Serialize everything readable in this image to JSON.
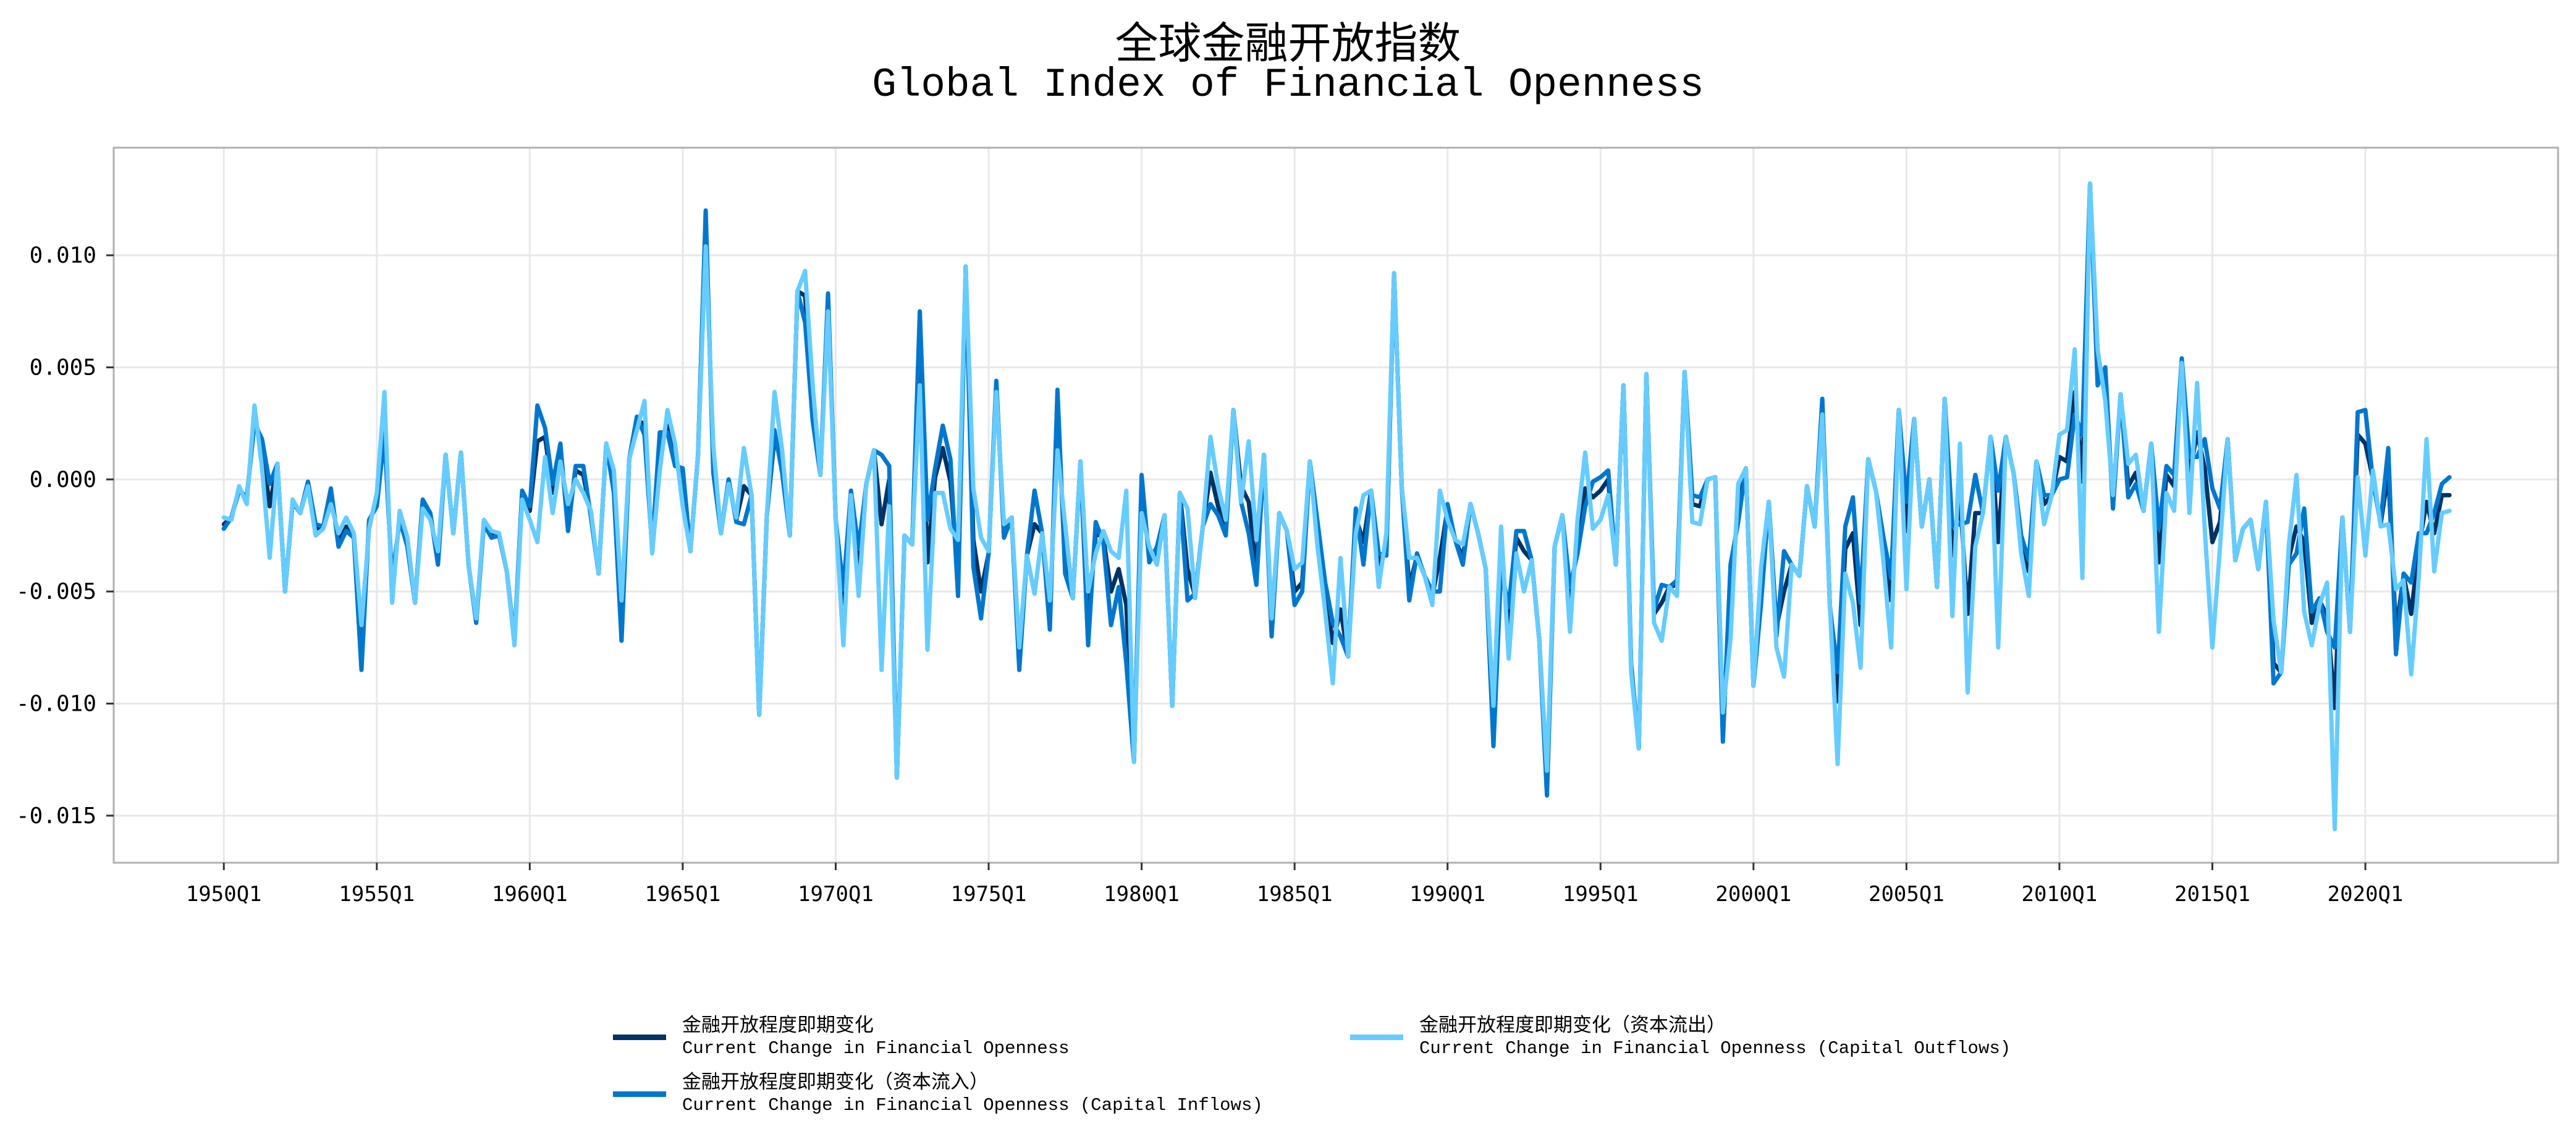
{
  "chart_data": {
    "type": "line",
    "title_cn": "全球金融开放指数",
    "title_en": "Global Index of Financial Openness",
    "xlabel": "",
    "ylabel": "",
    "x_start": "1950Q1",
    "frequency": "quarterly",
    "xlim_years": [
      1946.4,
      2026.3
    ],
    "ylim": [
      -0.0171,
      0.0148
    ],
    "grid": true,
    "legend_placement": "bottom-center",
    "x_ticks": [
      {
        "year": 1950,
        "label": "1950Q1"
      },
      {
        "year": 1955,
        "label": "1955Q1"
      },
      {
        "year": 1960,
        "label": "1960Q1"
      },
      {
        "year": 1965,
        "label": "1965Q1"
      },
      {
        "year": 1970,
        "label": "1970Q1"
      },
      {
        "year": 1975,
        "label": "1975Q1"
      },
      {
        "year": 1980,
        "label": "1980Q1"
      },
      {
        "year": 1985,
        "label": "1985Q1"
      },
      {
        "year": 1990,
        "label": "1990Q1"
      },
      {
        "year": 1995,
        "label": "1995Q1"
      },
      {
        "year": 2000,
        "label": "2000Q1"
      },
      {
        "year": 2005,
        "label": "2005Q1"
      },
      {
        "year": 2010,
        "label": "2010Q1"
      },
      {
        "year": 2015,
        "label": "2015Q1"
      },
      {
        "year": 2020,
        "label": "2020Q1"
      }
    ],
    "y_ticks": [
      {
        "value": 0.01,
        "label": "0.010"
      },
      {
        "value": 0.005,
        "label": "0.005"
      },
      {
        "value": 0.0,
        "label": "0.000"
      },
      {
        "value": -0.005,
        "label": "-0.005"
      },
      {
        "value": -0.01,
        "label": "-0.010"
      },
      {
        "value": -0.015,
        "label": "-0.015"
      }
    ],
    "series": [
      {
        "name_cn": "金融开放程度即期变化",
        "name_en": "Current Change in Financial Openness",
        "color": "#003366",
        "values": [
          -0.002,
          -0.0017,
          -0.0004,
          -0.0009,
          0.0028,
          0.0014,
          -0.0012,
          0.0007,
          -0.005,
          -0.001,
          -0.0015,
          -0.0002,
          -0.0022,
          -0.0021,
          -0.0006,
          -0.0028,
          -0.0021,
          -0.0025,
          -0.0078,
          -0.0019,
          -0.001,
          0.0026,
          -0.0048,
          -0.0017,
          -0.0029,
          -0.0055,
          -0.001,
          -0.0016,
          -0.0036,
          0.0011,
          -0.0024,
          0.0012,
          -0.0038,
          -0.0063,
          -0.0019,
          -0.0025,
          -0.0025,
          -0.0041,
          -0.0073,
          -0.0006,
          -0.0014,
          0.0017,
          0.0019,
          -0.0006,
          0.0013,
          -0.0019,
          0.0004,
          0.0002,
          -0.0016,
          -0.0042,
          0.0016,
          -0.0003,
          -0.0066,
          0.0009,
          0.0026,
          0.0025,
          -0.0031,
          0.0015,
          0.0024,
          0.0009,
          -0.0001,
          -0.0032,
          0.0011,
          0.0115,
          0.0007,
          -0.0024,
          -0.0001,
          -0.0018,
          -0.0003,
          -0.0007,
          -0.0105,
          -0.0016,
          0.0019,
          0.0006,
          -0.0025,
          0.0084,
          0.0082,
          0.0031,
          0.0002,
          0.008,
          -0.0018,
          -0.0057,
          -0.0006,
          -0.0038,
          -0.0002,
          0.0013,
          -0.002,
          0.0,
          -0.0133,
          -0.0025,
          -0.0029,
          0.0064,
          -0.0037,
          0.0001,
          0.0014,
          -0.0001,
          -0.0044,
          0.0095,
          -0.0027,
          -0.005,
          -0.0033,
          0.0042,
          -0.0024,
          -0.0017,
          -0.0082,
          -0.0034,
          -0.002,
          -0.0024,
          -0.0063,
          0.0031,
          -0.0035,
          -0.0053,
          0.0008,
          -0.0066,
          -0.0024,
          -0.0026,
          -0.005,
          -0.004,
          -0.0056,
          -0.0126,
          -0.0004,
          -0.0035,
          -0.0033,
          -0.0016,
          -0.0101,
          -0.0006,
          -0.004,
          -0.0052,
          -0.0021,
          0.0003,
          -0.0012,
          -0.0023,
          0.0031,
          -0.0003,
          -0.001,
          -0.004,
          0.0011,
          -0.0067,
          -0.0015,
          -0.0023,
          -0.005,
          -0.0046,
          0.0008,
          -0.0023,
          -0.005,
          -0.0073,
          -0.0058,
          -0.0079,
          -0.0017,
          -0.0028,
          -0.0005,
          -0.0038,
          -0.0031,
          0.0092,
          -0.0003,
          -0.0048,
          -0.0034,
          -0.0043,
          -0.0052,
          -0.0035,
          -0.0013,
          -0.0027,
          -0.0035,
          -0.0011,
          -0.0024,
          -0.004,
          -0.0113,
          -0.0034,
          -0.0065,
          -0.0026,
          -0.0032,
          -0.0036,
          -0.0072,
          -0.0137,
          -0.003,
          -0.0016,
          -0.0055,
          -0.0028,
          -0.0004,
          -0.0008,
          -0.0005,
          0.0,
          -0.0038,
          0.0042,
          -0.0083,
          -0.012,
          0.0047,
          -0.006,
          -0.0055,
          -0.0048,
          -0.0047,
          0.0048,
          -0.0011,
          -0.0012,
          0.0,
          0.0001,
          -0.0113,
          -0.0049,
          -0.0013,
          0.0005,
          -0.0092,
          -0.005,
          -0.001,
          -0.0066,
          -0.005,
          -0.0038,
          -0.0043,
          -0.0003,
          -0.0021,
          0.0034,
          -0.0057,
          -0.0099,
          -0.0031,
          -0.0024,
          -0.0065,
          0.0009,
          -0.0005,
          -0.003,
          -0.0054,
          0.0031,
          -0.0023,
          0.0027,
          -0.0021,
          0.0,
          -0.0048,
          0.0036,
          -0.0034,
          -0.0008,
          -0.006,
          -0.0015,
          -0.0015,
          0.0019,
          -0.0028,
          0.0019,
          0.0003,
          -0.0028,
          -0.0041,
          0.0008,
          -0.0011,
          -0.0007,
          0.001,
          0.0008,
          0.0039,
          -0.0001,
          0.0132,
          0.0047,
          0.0045,
          -0.0011,
          0.0038,
          -0.0003,
          0.0003,
          -0.0014,
          0.0016,
          -0.0037,
          0.0002,
          -0.0003,
          0.0053,
          0.0002,
          0.0021,
          0.0005,
          -0.0028,
          -0.0019,
          0.0018,
          -0.0036,
          -0.0022,
          -0.0018,
          -0.004,
          -0.001,
          -0.0082,
          -0.0086,
          -0.0035,
          -0.0021,
          -0.0028,
          -0.0064,
          -0.0054,
          -0.0061,
          -0.0102,
          -0.0017,
          -0.0068,
          0.002,
          0.0016,
          0.0,
          -0.002,
          0.0003,
          -0.0068,
          -0.0043,
          -0.006,
          -0.003,
          -0.001,
          -0.0024,
          -0.0007,
          -0.0007
        ]
      },
      {
        "name_cn": "金融开放程度即期变化（资本流入）",
        "name_en": "Current Change in Financial Openness (Capital Inflows)",
        "color": "#0077CC",
        "values": [
          -0.0022,
          -0.0017,
          -0.0005,
          -0.0008,
          0.0025,
          0.0018,
          -0.0002,
          0.0007,
          -0.005,
          -0.001,
          -0.0015,
          -0.0001,
          -0.002,
          -0.0021,
          -0.0004,
          -0.003,
          -0.0023,
          -0.0026,
          -0.0085,
          -0.0018,
          -0.0012,
          0.002,
          -0.0045,
          -0.0018,
          -0.003,
          -0.0055,
          -0.0009,
          -0.0015,
          -0.0038,
          0.0011,
          -0.0024,
          0.0012,
          -0.0038,
          -0.0064,
          -0.002,
          -0.0026,
          -0.0025,
          -0.0041,
          -0.0072,
          -0.0005,
          -0.0012,
          0.0033,
          0.0023,
          -0.0002,
          0.0016,
          -0.0023,
          0.0006,
          0.0006,
          -0.0017,
          -0.0042,
          0.0016,
          -0.0006,
          -0.0072,
          0.0009,
          0.0028,
          0.002,
          -0.003,
          0.0021,
          0.0021,
          0.0006,
          0.0005,
          -0.0032,
          0.0011,
          0.012,
          0.0003,
          -0.0024,
          0.0,
          -0.0019,
          -0.002,
          -0.0007,
          -0.0105,
          -0.0016,
          0.0022,
          0.0003,
          -0.0025,
          0.0084,
          0.007,
          0.0026,
          0.0002,
          0.0083,
          -0.0018,
          -0.0049,
          -0.0005,
          -0.0031,
          -0.0002,
          0.0013,
          0.0011,
          0.0006,
          -0.0133,
          -0.0025,
          -0.0029,
          0.0075,
          -0.0018,
          0.0005,
          0.0024,
          0.0009,
          -0.0052,
          0.0095,
          -0.0039,
          -0.0062,
          -0.0033,
          0.0044,
          -0.0026,
          -0.0017,
          -0.0085,
          -0.0034,
          -0.0005,
          -0.0024,
          -0.0067,
          0.004,
          -0.0042,
          -0.0053,
          0.0008,
          -0.0074,
          -0.0019,
          -0.0028,
          -0.0065,
          -0.0048,
          -0.0082,
          -0.0126,
          0.0002,
          -0.0037,
          -0.003,
          -0.0016,
          -0.0101,
          -0.0006,
          -0.0054,
          -0.0051,
          -0.0021,
          -0.0011,
          -0.0016,
          -0.0025,
          0.0031,
          -0.001,
          -0.0024,
          -0.0047,
          0.0011,
          -0.007,
          -0.0015,
          -0.0023,
          -0.0056,
          -0.005,
          0.0008,
          -0.0019,
          -0.0046,
          -0.0064,
          -0.007,
          -0.0079,
          -0.0013,
          -0.0038,
          -0.0005,
          -0.0033,
          -0.0034,
          0.0092,
          -0.0003,
          -0.0054,
          -0.0033,
          -0.0043,
          -0.005,
          -0.005,
          -0.0011,
          -0.0027,
          -0.0038,
          -0.0011,
          -0.0024,
          -0.004,
          -0.0119,
          -0.004,
          -0.0057,
          -0.0023,
          -0.0023,
          -0.0036,
          -0.0072,
          -0.0141,
          -0.003,
          -0.0016,
          -0.0048,
          -0.0033,
          -0.0012,
          -0.0001,
          0.0001,
          0.0004,
          -0.0038,
          0.0042,
          -0.0082,
          -0.012,
          0.0047,
          -0.0058,
          -0.0047,
          -0.0048,
          -0.0045,
          0.0048,
          -0.0007,
          -0.0008,
          0.0,
          0.0001,
          -0.0117,
          -0.0038,
          -0.0019,
          0.0005,
          -0.0092,
          -0.0055,
          -0.001,
          -0.007,
          -0.0032,
          -0.0038,
          -0.0043,
          -0.0003,
          -0.0021,
          0.0036,
          -0.0057,
          -0.0086,
          -0.0021,
          -0.0008,
          -0.0055,
          0.0009,
          -0.0005,
          -0.0026,
          -0.0044,
          0.0031,
          -0.001,
          0.0027,
          -0.0021,
          0.0,
          -0.0048,
          0.0036,
          -0.0021,
          -0.002,
          -0.0019,
          0.0002,
          -0.0015,
          0.0019,
          -0.0005,
          0.0019,
          0.0003,
          -0.0025,
          -0.0036,
          0.0008,
          -0.0007,
          -0.0007,
          0.0,
          0.0001,
          0.0029,
          0.002,
          0.0132,
          0.0042,
          0.005,
          -0.0013,
          0.0038,
          -0.0008,
          -0.0002,
          -0.0014,
          0.0016,
          -0.0022,
          0.0006,
          0.0002,
          0.0054,
          0.001,
          0.001,
          0.0018,
          -0.0004,
          -0.0013,
          0.0018,
          -0.0036,
          -0.0022,
          -0.0018,
          -0.004,
          -0.001,
          -0.0091,
          -0.0086,
          -0.0038,
          -0.0033,
          -0.0013,
          -0.0059,
          -0.0053,
          -0.0068,
          -0.0075,
          -0.0017,
          -0.0068,
          0.003,
          0.0031,
          -0.0001,
          -0.0019,
          0.0014,
          -0.0078,
          -0.0042,
          -0.0046,
          -0.0024,
          -0.0024,
          -0.0015,
          -0.0002,
          0.0001
        ]
      },
      {
        "name_cn": "金融开放程度即期变化（资本流出）",
        "name_en": "Current Change in Financial Openness (Capital Outflows)",
        "color": "#66CCFF",
        "values": [
          -0.0017,
          -0.0018,
          -0.0003,
          -0.0011,
          0.0033,
          0.0005,
          -0.0035,
          0.0007,
          -0.005,
          -0.0009,
          -0.0015,
          -0.0003,
          -0.0025,
          -0.0022,
          -0.0011,
          -0.0024,
          -0.0017,
          -0.0024,
          -0.0065,
          -0.0022,
          -0.0006,
          0.0039,
          -0.0055,
          -0.0014,
          -0.0026,
          -0.0055,
          -0.0013,
          -0.0018,
          -0.0032,
          0.0011,
          -0.0024,
          0.0012,
          -0.0038,
          -0.0062,
          -0.0018,
          -0.0023,
          -0.0024,
          -0.0041,
          -0.0074,
          -0.0009,
          -0.0018,
          -0.0028,
          0.001,
          -0.0015,
          0.0008,
          -0.0011,
          0.0,
          -0.0006,
          -0.0014,
          -0.0042,
          0.0016,
          0.0004,
          -0.0054,
          0.0009,
          0.0022,
          0.0035,
          -0.0033,
          0.0004,
          0.0031,
          0.0016,
          -0.0012,
          -0.0032,
          0.0011,
          0.0104,
          0.0015,
          -0.0024,
          -0.0002,
          -0.0017,
          0.0014,
          -0.0007,
          -0.0105,
          -0.0016,
          0.0039,
          0.0013,
          -0.0025,
          0.0084,
          0.0093,
          0.0042,
          0.0002,
          0.0075,
          -0.0018,
          -0.0074,
          -0.0007,
          -0.0052,
          -0.0002,
          0.0013,
          -0.0085,
          -0.0012,
          -0.0133,
          -0.0025,
          -0.0029,
          0.0042,
          -0.0076,
          -0.0006,
          -0.0006,
          -0.0022,
          -0.0027,
          0.0095,
          -0.0004,
          -0.0026,
          -0.0032,
          0.0039,
          -0.002,
          -0.0017,
          -0.0075,
          -0.0034,
          -0.0051,
          -0.0024,
          -0.0054,
          0.0013,
          -0.002,
          -0.0053,
          0.0008,
          -0.005,
          -0.0033,
          -0.0023,
          -0.0032,
          -0.0035,
          -0.0005,
          -0.0126,
          -0.0015,
          -0.003,
          -0.0038,
          -0.0016,
          -0.0101,
          -0.0006,
          -0.0013,
          -0.0053,
          -0.0021,
          0.0019,
          -0.0003,
          -0.0018,
          0.0031,
          -0.001,
          0.0017,
          -0.0027,
          0.0011,
          -0.0062,
          -0.0015,
          -0.0023,
          -0.004,
          -0.0037,
          0.0008,
          -0.003,
          -0.0059,
          -0.0091,
          -0.0035,
          -0.0079,
          -0.0024,
          -0.0007,
          -0.0005,
          -0.0048,
          -0.0024,
          0.0092,
          -0.0003,
          -0.0035,
          -0.0035,
          -0.0043,
          -0.0056,
          -0.0005,
          -0.0018,
          -0.0027,
          -0.0029,
          -0.0011,
          -0.0024,
          -0.004,
          -0.0101,
          -0.0021,
          -0.008,
          -0.0033,
          -0.005,
          -0.0036,
          -0.0072,
          -0.013,
          -0.003,
          -0.0016,
          -0.0068,
          -0.0018,
          0.0012,
          -0.0022,
          -0.0018,
          -0.0007,
          -0.0038,
          0.0042,
          -0.0086,
          -0.012,
          0.0047,
          -0.0064,
          -0.0072,
          -0.0048,
          -0.0052,
          0.0048,
          -0.0019,
          -0.002,
          0.0,
          0.0001,
          -0.0104,
          -0.0071,
          -0.0002,
          0.0005,
          -0.0092,
          -0.0039,
          -0.001,
          -0.0075,
          -0.0088,
          -0.0038,
          -0.0043,
          -0.0003,
          -0.0021,
          0.0029,
          -0.0057,
          -0.0127,
          -0.0042,
          -0.0055,
          -0.0084,
          0.0009,
          -0.0005,
          -0.0037,
          -0.0075,
          0.0031,
          -0.0049,
          0.0027,
          -0.0021,
          0.0,
          -0.0048,
          0.0036,
          -0.0061,
          0.0016,
          -0.0095,
          -0.003,
          -0.0015,
          0.0019,
          -0.0075,
          0.0019,
          0.0003,
          -0.0033,
          -0.0052,
          0.0008,
          -0.002,
          -0.0007,
          0.002,
          0.0022,
          0.0058,
          -0.0044,
          0.0132,
          0.0058,
          0.0035,
          -0.0007,
          0.0038,
          0.0007,
          0.0011,
          -0.0014,
          0.0016,
          -0.0068,
          -0.0006,
          -0.0014,
          0.0052,
          -0.0015,
          0.0043,
          -0.0022,
          -0.0075,
          -0.003,
          0.0018,
          -0.0036,
          -0.0022,
          -0.0018,
          -0.004,
          -0.001,
          -0.0063,
          -0.0086,
          -0.0029,
          0.0002,
          -0.0059,
          -0.0074,
          -0.0056,
          -0.0046,
          -0.0156,
          -0.0017,
          -0.0068,
          0.0001,
          -0.0034,
          0.0004,
          -0.0021,
          -0.002,
          -0.0049,
          -0.0045,
          -0.0087,
          -0.0043,
          0.0018,
          -0.0041,
          -0.0015,
          -0.0014
        ]
      }
    ]
  }
}
